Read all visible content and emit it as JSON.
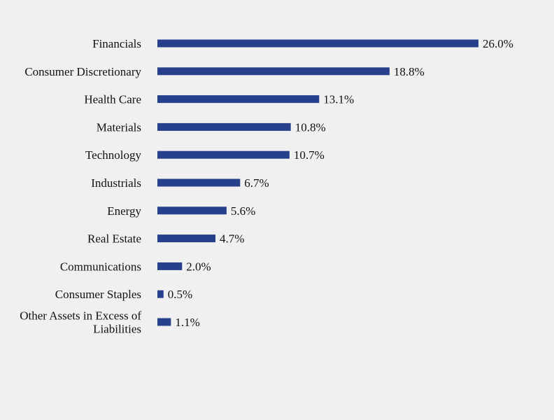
{
  "chart_data": {
    "type": "bar",
    "orientation": "horizontal",
    "categories": [
      "Financials",
      "Consumer Discretionary",
      "Health Care",
      "Materials",
      "Technology",
      "Industrials",
      "Energy",
      "Real Estate",
      "Communications",
      "Consumer Staples",
      "Other Assets in Excess of Liabilities"
    ],
    "category_label_lines": [
      [
        "Financials"
      ],
      [
        "Consumer Discretionary"
      ],
      [
        "Health Care"
      ],
      [
        "Materials"
      ],
      [
        "Technology"
      ],
      [
        "Industrials"
      ],
      [
        "Energy"
      ],
      [
        "Real Estate"
      ],
      [
        "Communications"
      ],
      [
        "Consumer Staples"
      ],
      [
        "Other Assets in Excess of",
        "Liabilities"
      ]
    ],
    "values": [
      26.0,
      18.8,
      13.1,
      10.8,
      10.7,
      6.7,
      5.6,
      4.7,
      2.0,
      0.5,
      1.1
    ],
    "value_labels": [
      "26.0%",
      "18.8%",
      "13.1%",
      "10.8%",
      "10.7%",
      "6.7%",
      "5.6%",
      "4.7%",
      "2.0%",
      "0.5%",
      "1.1%"
    ],
    "xlim": [
      0,
      26.0
    ],
    "grid": false,
    "legend": "none",
    "colors": {
      "bar": "#27408b",
      "background": "#f0f0f0",
      "text": "#111111"
    }
  }
}
